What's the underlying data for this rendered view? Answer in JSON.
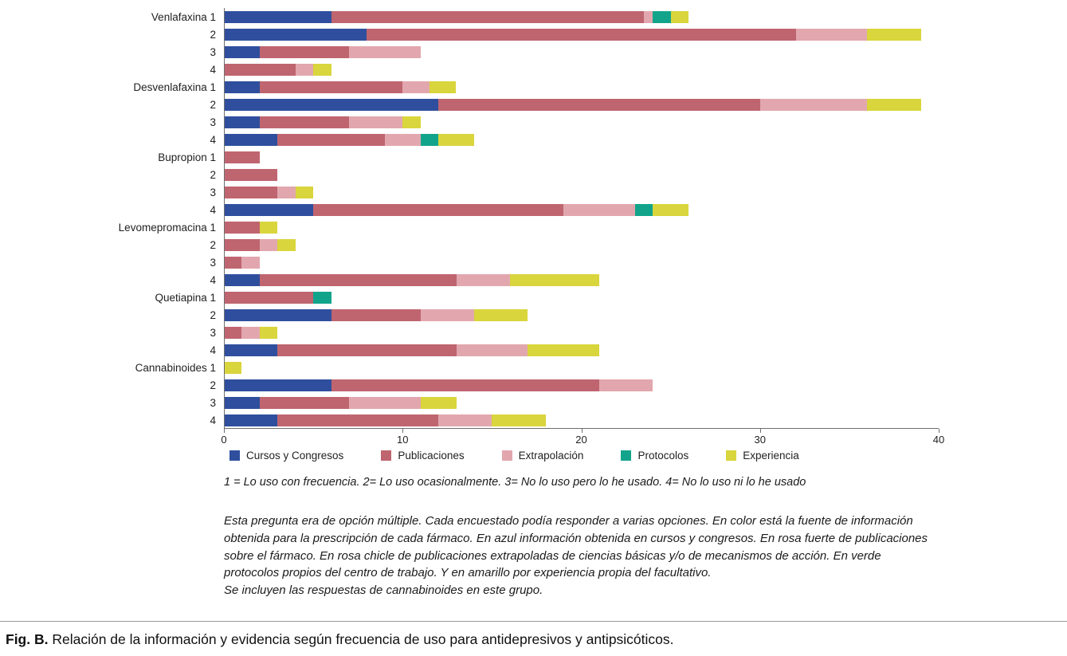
{
  "chart_data": {
    "type": "bar",
    "orientation": "horizontal",
    "stacked": true,
    "title": "",
    "xlabel": "",
    "ylabel": "",
    "xlim": [
      0,
      40
    ],
    "x_ticks": [
      0,
      10,
      20,
      30,
      40
    ],
    "grid": false,
    "legend_position": "bottom",
    "series_names": [
      "Cursos y Congresos",
      "Publicaciones",
      "Extrapolación",
      "Protocolos",
      "Experiencia"
    ],
    "series_colors": [
      "#2f4f9e",
      "#bf6570",
      "#e2a7ae",
      "#12a48b",
      "#d9d53c"
    ],
    "rows": [
      {
        "label": "Venlafaxina 1",
        "values": [
          6,
          17.5,
          0.5,
          1,
          1
        ]
      },
      {
        "label": "2",
        "values": [
          8,
          24,
          4,
          0,
          3
        ]
      },
      {
        "label": "3",
        "values": [
          2,
          5,
          4,
          0,
          0
        ]
      },
      {
        "label": "4",
        "values": [
          0,
          4,
          1,
          0,
          1
        ]
      },
      {
        "label": "Desvenlafaxina 1",
        "values": [
          2,
          8,
          1.5,
          0,
          1.5
        ]
      },
      {
        "label": "2",
        "values": [
          12,
          18,
          6,
          0,
          3
        ]
      },
      {
        "label": "3",
        "values": [
          2,
          5,
          3,
          0,
          1
        ]
      },
      {
        "label": "4",
        "values": [
          3,
          6,
          2,
          1,
          2
        ]
      },
      {
        "label": "Bupropion 1",
        "values": [
          0,
          2,
          0,
          0,
          0
        ]
      },
      {
        "label": "2",
        "values": [
          0,
          3,
          0,
          0,
          0
        ]
      },
      {
        "label": "3",
        "values": [
          0,
          3,
          1,
          0,
          1
        ]
      },
      {
        "label": "4",
        "values": [
          5,
          14,
          4,
          1,
          2
        ]
      },
      {
        "label": "Levomepromacina 1",
        "values": [
          0,
          2,
          0,
          0,
          1
        ]
      },
      {
        "label": "2",
        "values": [
          0,
          2,
          1,
          0,
          1
        ]
      },
      {
        "label": "3",
        "values": [
          0,
          1,
          1,
          0,
          0
        ]
      },
      {
        "label": "4",
        "values": [
          2,
          11,
          3,
          0,
          5
        ]
      },
      {
        "label": "Quetiapina 1",
        "values": [
          0,
          5,
          0,
          1,
          0
        ]
      },
      {
        "label": "2",
        "values": [
          6,
          5,
          3,
          0,
          3
        ]
      },
      {
        "label": "3",
        "values": [
          0,
          1,
          1,
          0,
          1
        ]
      },
      {
        "label": "4",
        "values": [
          3,
          10,
          4,
          0,
          4
        ]
      },
      {
        "label": "Cannabinoides 1",
        "values": [
          0,
          0,
          0,
          0,
          1
        ]
      },
      {
        "label": "2",
        "values": [
          6,
          15,
          3,
          0,
          0
        ]
      },
      {
        "label": "3",
        "values": [
          2,
          5,
          4,
          0,
          2
        ]
      },
      {
        "label": "4",
        "values": [
          3,
          9,
          3,
          0,
          3
        ]
      }
    ]
  },
  "notes": {
    "scale_note": "1 = Lo uso con frecuencia. 2= Lo uso ocasionalmente. 3= No lo uso pero lo he usado. 4= No lo uso ni lo he usado",
    "paragraph": "Esta pregunta era de opción múltiple. Cada encuestado podía responder a varias opciones. En color está la fuente de información obtenida para la prescripción de cada fármaco. En azul información obtenida en cursos y congresos. En rosa fuerte de publicaciones sobre el fármaco. En rosa chicle de publicaciones extrapoladas de ciencias básicas y/o de mecanismos de acción. En verde protocolos propios del centro de trabajo. Y en amarillo por experiencia propia del facultativo.",
    "paragraph2": "Se incluyen las respuestas de cannabinoides en este grupo."
  },
  "figure": {
    "caption_label": "Fig. B.",
    "caption_text": "Relación de la información y evidencia según frecuencia de uso para antidepresivos y antipsicóticos."
  }
}
